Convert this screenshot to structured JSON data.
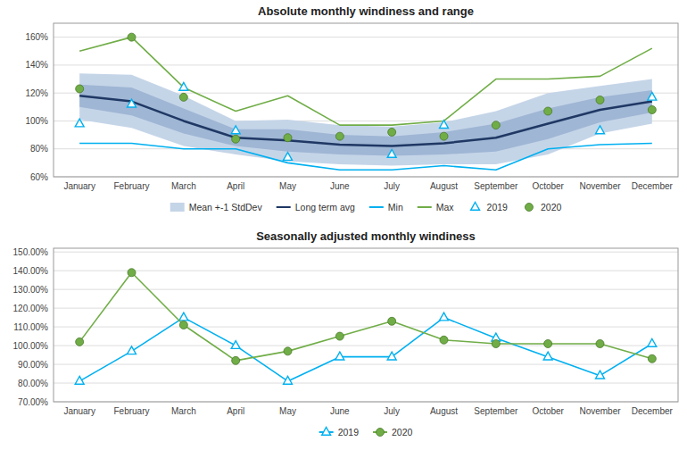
{
  "chart_data": [
    {
      "type": "line",
      "title": "Absolute monthly windiness and range",
      "categories": [
        "January",
        "February",
        "March",
        "April",
        "May",
        "June",
        "July",
        "August",
        "September",
        "October",
        "November",
        "December"
      ],
      "series": [
        {
          "name": "Mean +-1 StdDev",
          "type": "band",
          "color": "#c5d5e8",
          "upper": [
            134,
            133,
            118,
            100,
            101,
            97,
            96,
            99,
            107,
            120,
            125,
            130
          ],
          "lower": [
            101,
            95,
            82,
            76,
            71,
            69,
            68,
            69,
            69,
            76,
            91,
            98
          ]
        },
        {
          "type": "band",
          "color": "#9fb6d4",
          "upper": [
            126,
            124,
            109,
            94,
            94,
            90,
            89,
            92,
            98,
            109,
            117,
            122
          ],
          "lower": [
            110,
            104,
            91,
            82,
            78,
            76,
            75,
            76,
            78,
            87,
            99,
            106
          ]
        },
        {
          "name": "Long term avg",
          "type": "line",
          "color": "#1f3864",
          "values": [
            118,
            114,
            100,
            88,
            86,
            83,
            82,
            84,
            88,
            98,
            108,
            114
          ]
        },
        {
          "name": "Min",
          "type": "line",
          "color": "#00b0f0",
          "values": [
            84,
            84,
            80,
            80,
            70,
            65,
            65,
            68,
            65,
            80,
            83,
            84
          ]
        },
        {
          "name": "Max",
          "type": "line",
          "color": "#70ad47",
          "values": [
            150,
            160,
            124,
            107,
            118,
            97,
            97,
            100,
            130,
            130,
            132,
            152
          ]
        },
        {
          "name": "2019",
          "type": "scatter",
          "color": "#00b0f0",
          "marker": "triangle",
          "values": [
            98,
            112,
            124,
            93,
            74,
            null,
            76,
            97,
            null,
            null,
            93,
            117
          ]
        },
        {
          "name": "2020",
          "type": "scatter",
          "color": "#70ad47",
          "marker": "circle",
          "values": [
            123,
            160,
            117,
            87,
            88,
            89,
            92,
            89,
            97,
            107,
            115,
            108
          ]
        }
      ],
      "ylim": [
        60,
        170
      ],
      "yticks": [
        {
          "value": 60,
          "label": "60%"
        },
        {
          "value": 80,
          "label": "80%"
        },
        {
          "value": 100,
          "label": "100%"
        },
        {
          "value": 120,
          "label": "120%"
        },
        {
          "value": 140,
          "label": "140%"
        },
        {
          "value": 160,
          "label": "160%"
        }
      ],
      "grid": true,
      "legend": "bottom"
    },
    {
      "type": "line",
      "title": "Seasonally adjusted monthly windiness",
      "categories": [
        "January",
        "February",
        "March",
        "April",
        "May",
        "June",
        "July",
        "August",
        "September",
        "October",
        "November",
        "December"
      ],
      "series": [
        {
          "name": "2019",
          "type": "line",
          "color": "#00b0f0",
          "marker": "triangle",
          "values": [
            81,
            97,
            115,
            100,
            81,
            94,
            94,
            115,
            104,
            94,
            84,
            101
          ]
        },
        {
          "name": "2020",
          "type": "line",
          "color": "#70ad47",
          "marker": "circle",
          "values": [
            102,
            139,
            111,
            92,
            97,
            105,
            113,
            103,
            101,
            101,
            101,
            93
          ]
        }
      ],
      "ylim": [
        70,
        152
      ],
      "yticks": [
        {
          "value": 70,
          "label": "70.00%"
        },
        {
          "value": 80,
          "label": "80.00%"
        },
        {
          "value": 90,
          "label": "90.00%"
        },
        {
          "value": 100,
          "label": "100.00%"
        },
        {
          "value": 110,
          "label": "110.00%"
        },
        {
          "value": 120,
          "label": "120.00%"
        },
        {
          "value": 130,
          "label": "130.00%"
        },
        {
          "value": 140,
          "label": "140.00%"
        },
        {
          "value": 150,
          "label": "150.00%"
        }
      ],
      "grid": true,
      "legend": "bottom"
    }
  ]
}
